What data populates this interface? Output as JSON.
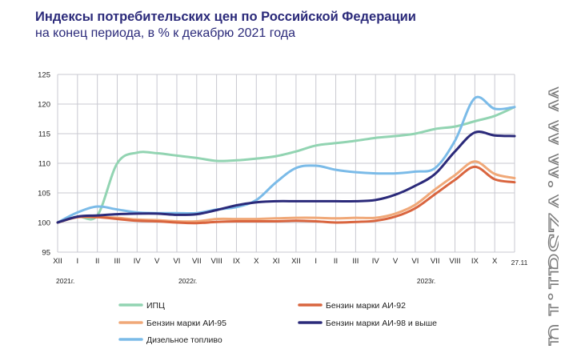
{
  "chart_data": {
    "type": "line",
    "title": "Индексы потребительских цен по Российской Федерации",
    "subtitle": "на конец периода, в % к декабрю 2021 года",
    "categories": [
      "XII",
      "I",
      "II",
      "III",
      "IV",
      "V",
      "VI",
      "VII",
      "VIII",
      "IX",
      "X",
      "XI",
      "XII",
      "I",
      "II",
      "III",
      "IV",
      "V",
      "VI",
      "VII",
      "VIII",
      "IX",
      "X",
      "27.11"
    ],
    "year_labels": [
      {
        "label": "2021г.",
        "index": 0
      },
      {
        "label": "2022г.",
        "index": 6
      },
      {
        "label": "2023г.",
        "index": 18
      }
    ],
    "ylim": [
      95,
      125
    ],
    "yticks": [
      95,
      100,
      105,
      110,
      115,
      120,
      125
    ],
    "grid": true,
    "legend_position": "bottom",
    "series": [
      {
        "name": "ИПЦ",
        "color": "#92d4b2",
        "values": [
          100,
          101,
          101.2,
          110,
          111.8,
          111.7,
          111.3,
          110.9,
          110.4,
          110.5,
          110.8,
          111.2,
          112,
          113,
          113.4,
          113.8,
          114.3,
          114.6,
          115.0,
          115.8,
          116.2,
          117.1,
          118.0,
          119.5
        ]
      },
      {
        "name": "Бензин марки АИ-95",
        "color": "#f0a878",
        "values": [
          100,
          100.9,
          100.9,
          100.8,
          100.5,
          100.4,
          100.2,
          100.2,
          100.6,
          100.6,
          100.6,
          100.7,
          100.8,
          100.8,
          100.7,
          100.8,
          100.8,
          101.5,
          103,
          105.6,
          108,
          110.3,
          108.2,
          107.5
        ]
      },
      {
        "name": "Дизельное топливо",
        "color": "#7bbbe8",
        "values": [
          100,
          101.7,
          102.7,
          102.2,
          101.7,
          101.6,
          101.6,
          101.6,
          102.2,
          102.6,
          103.8,
          106.8,
          109.2,
          109.6,
          108.9,
          108.5,
          108.3,
          108.3,
          108.6,
          109.2,
          113.8,
          121.0,
          119.2,
          119.5
        ]
      },
      {
        "name": "Бензин марки АИ-92",
        "color": "#d9653f",
        "values": [
          100,
          100.9,
          100.9,
          100.6,
          100.3,
          100.2,
          100.0,
          99.9,
          100.1,
          100.2,
          100.2,
          100.2,
          100.3,
          100.2,
          100.0,
          100.1,
          100.3,
          101.0,
          102.4,
          104.8,
          107.2,
          109.4,
          107.3,
          106.8
        ]
      },
      {
        "name": "Бензин марки АИ-98 и выше",
        "color": "#2b2a7a",
        "values": [
          100,
          101.0,
          101.2,
          101.4,
          101.5,
          101.5,
          101.3,
          101.4,
          102.1,
          102.9,
          103.4,
          103.6,
          103.6,
          103.6,
          103.6,
          103.6,
          103.8,
          104.7,
          106.2,
          108.2,
          112.0,
          115.2,
          114.7,
          114.6
        ]
      }
    ]
  },
  "watermark": "www.vzsar.ru",
  "colors": {
    "title": "#2b2a7a",
    "grid": "#c8c8d0",
    "axis_text": "#222222"
  }
}
